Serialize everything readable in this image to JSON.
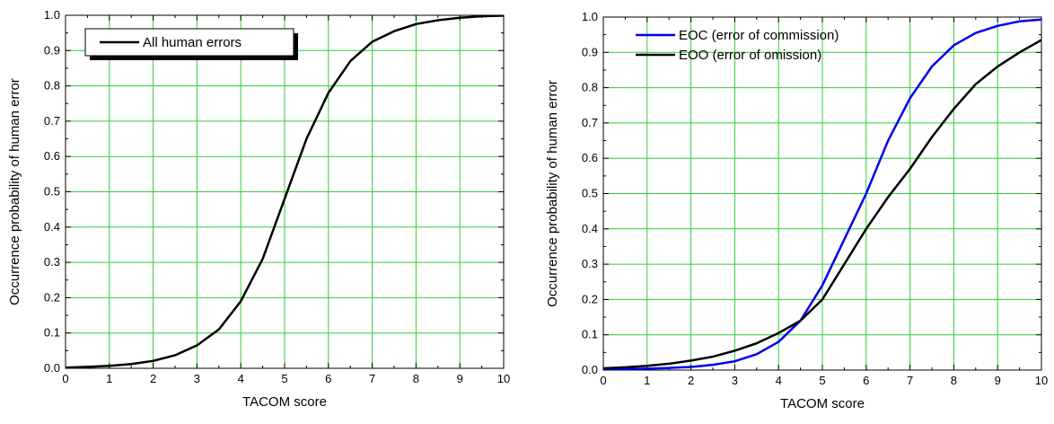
{
  "chart_data": [
    {
      "type": "line",
      "xlabel": "TACOM score",
      "ylabel": "Occurrence probability of human error",
      "xlim": [
        0,
        10
      ],
      "ylim": [
        0,
        1
      ],
      "xticks": [
        "0",
        "1",
        "2",
        "3",
        "4",
        "5",
        "6",
        "7",
        "8",
        "9",
        "10"
      ],
      "yticks": [
        "0.0",
        "0.1",
        "0.2",
        "0.3",
        "0.4",
        "0.5",
        "0.6",
        "0.7",
        "0.8",
        "0.9",
        "1.0"
      ],
      "grid": true,
      "grid_color": "#33cc33",
      "legend_position": "top-left",
      "x": [
        0,
        0.5,
        1,
        1.5,
        2,
        2.5,
        3,
        3.5,
        4,
        4.5,
        5,
        5.5,
        6,
        6.5,
        7,
        7.5,
        8,
        8.5,
        9,
        9.5,
        10
      ],
      "series": [
        {
          "name": "All human errors",
          "color": "#000000",
          "values": [
            0.002,
            0.004,
            0.007,
            0.012,
            0.021,
            0.037,
            0.065,
            0.11,
            0.19,
            0.31,
            0.48,
            0.65,
            0.78,
            0.87,
            0.925,
            0.955,
            0.975,
            0.986,
            0.993,
            0.997,
            0.999
          ]
        }
      ]
    },
    {
      "type": "line",
      "xlabel": "TACOM score",
      "ylabel": "Occurrence probability of human error",
      "xlim": [
        0,
        10
      ],
      "ylim": [
        0,
        1
      ],
      "xticks": [
        "0",
        "1",
        "2",
        "3",
        "4",
        "5",
        "6",
        "7",
        "8",
        "9",
        "10"
      ],
      "yticks": [
        "0.0",
        "0.1",
        "0.2",
        "0.3",
        "0.4",
        "0.5",
        "0.6",
        "0.7",
        "0.8",
        "0.9",
        "1.0"
      ],
      "grid": true,
      "grid_color": "#33cc33",
      "legend_position": "top-left",
      "x": [
        0,
        0.5,
        1,
        1.5,
        2,
        2.5,
        3,
        3.5,
        4,
        4.5,
        5,
        5.5,
        6,
        6.5,
        7,
        7.5,
        8,
        8.5,
        9,
        9.5,
        10
      ],
      "series": [
        {
          "name": "EOC (error of commission)",
          "color": "#0000ee",
          "values": [
            0.002,
            0.003,
            0.004,
            0.006,
            0.009,
            0.015,
            0.025,
            0.045,
            0.08,
            0.14,
            0.24,
            0.37,
            0.5,
            0.65,
            0.77,
            0.86,
            0.92,
            0.955,
            0.975,
            0.988,
            0.993
          ]
        },
        {
          "name": "EOO (error of omission)",
          "color": "#000000",
          "values": [
            0.005,
            0.008,
            0.012,
            0.018,
            0.027,
            0.038,
            0.055,
            0.076,
            0.105,
            0.14,
            0.2,
            0.3,
            0.4,
            0.49,
            0.57,
            0.66,
            0.74,
            0.81,
            0.86,
            0.9,
            0.935
          ]
        }
      ]
    }
  ]
}
